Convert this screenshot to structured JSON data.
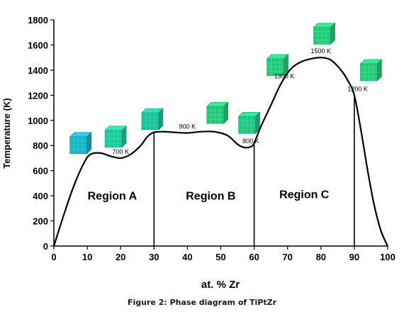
{
  "caption": "Figure 2: Phase diagram of TiPtZr",
  "chart_data": {
    "type": "line",
    "xlabel": "at. % Zr",
    "ylabel": "Temperature (K)",
    "xlim": [
      0,
      100
    ],
    "ylim": [
      0,
      1800
    ],
    "x_ticks": [
      0,
      10,
      20,
      30,
      40,
      50,
      60,
      70,
      80,
      90,
      100
    ],
    "y_ticks": [
      0,
      200,
      400,
      600,
      800,
      1000,
      1200,
      1400,
      1600,
      1800
    ],
    "grid": false,
    "line_color": "#000000",
    "series": [
      {
        "x": [
          0,
          3,
          6,
          9,
          11,
          14,
          17,
          20,
          23,
          26,
          28,
          30,
          33,
          36,
          40,
          44,
          48,
          52,
          55,
          57,
          59,
          60,
          62,
          65,
          68,
          71,
          74,
          77,
          80,
          83,
          86,
          88,
          90,
          92,
          94,
          96,
          98,
          100
        ],
        "y": [
          0,
          250,
          480,
          660,
          730,
          740,
          715,
          700,
          730,
          800,
          870,
          905,
          910,
          905,
          900,
          910,
          910,
          880,
          810,
          785,
          790,
          820,
          950,
          1120,
          1290,
          1410,
          1465,
          1490,
          1500,
          1480,
          1400,
          1320,
          1200,
          920,
          600,
          320,
          120,
          0
        ]
      }
    ],
    "point_labels": [
      {
        "x": 20,
        "y": 700,
        "text": "700 K"
      },
      {
        "x": 40,
        "y": 900,
        "text": "900 K"
      },
      {
        "x": 59,
        "y": 785,
        "text": "800 K"
      },
      {
        "x": 69,
        "y": 1300,
        "text": "1300 K"
      },
      {
        "x": 80,
        "y": 1500,
        "text": "1500 K"
      },
      {
        "x": 91,
        "y": 1200,
        "text": "1200 K"
      }
    ],
    "region_dividers": [
      30,
      60,
      90
    ],
    "regions": [
      {
        "label": "Region A",
        "x": 17.5,
        "y": 370
      },
      {
        "label": "Region B",
        "x": 47,
        "y": 370
      },
      {
        "label": "Region C",
        "x": 75,
        "y": 380
      }
    ],
    "structure_icons": [
      {
        "name": "cubic-structure-icon",
        "x": 8,
        "y": 820,
        "color": "#1fb2c3"
      },
      {
        "name": "cubic-structure-icon",
        "x": 18.5,
        "y": 870,
        "color": "#25c79a"
      },
      {
        "name": "cubic-structure-icon",
        "x": 29.5,
        "y": 1010,
        "color": "#1fc199"
      },
      {
        "name": "cubic-structure-icon",
        "x": 49,
        "y": 1060,
        "color": "#2ac77a"
      },
      {
        "name": "cubic-structure-icon",
        "x": 58.5,
        "y": 980,
        "color": "#28c383"
      },
      {
        "name": "cubic-structure-icon",
        "x": 67,
        "y": 1440,
        "color": "#2ac77a"
      },
      {
        "name": "cubic-structure-icon",
        "x": 81,
        "y": 1690,
        "color": "#2ac77a"
      },
      {
        "name": "cubic-structure-icon",
        "x": 95,
        "y": 1400,
        "color": "#2ac77a"
      }
    ]
  }
}
